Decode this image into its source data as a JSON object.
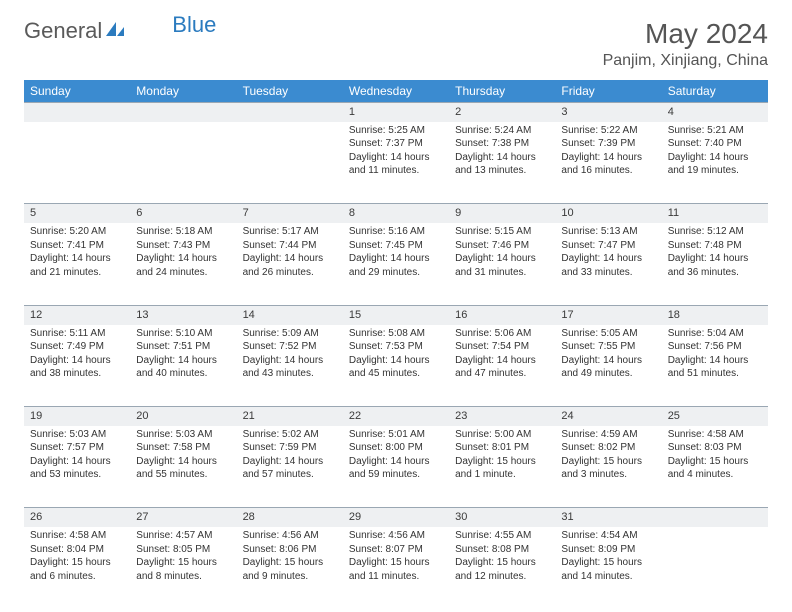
{
  "logo": {
    "text1": "General",
    "text2": "Blue",
    "color_accent": "#2b7bbf",
    "color_text": "#5a5a5a"
  },
  "header": {
    "title": "May 2024",
    "location": "Panjim, Xinjiang, China"
  },
  "colors": {
    "header_bg": "#3b8bd0",
    "header_text": "#ffffff",
    "daynum_bg": "#eef0f2",
    "daynum_border": "#9aa7b3",
    "body_text": "#333333"
  },
  "weekdays": [
    "Sunday",
    "Monday",
    "Tuesday",
    "Wednesday",
    "Thursday",
    "Friday",
    "Saturday"
  ],
  "weeks": [
    [
      null,
      null,
      null,
      {
        "n": "1",
        "sr": "Sunrise: 5:25 AM",
        "ss": "Sunset: 7:37 PM",
        "d1": "Daylight: 14 hours",
        "d2": "and 11 minutes."
      },
      {
        "n": "2",
        "sr": "Sunrise: 5:24 AM",
        "ss": "Sunset: 7:38 PM",
        "d1": "Daylight: 14 hours",
        "d2": "and 13 minutes."
      },
      {
        "n": "3",
        "sr": "Sunrise: 5:22 AM",
        "ss": "Sunset: 7:39 PM",
        "d1": "Daylight: 14 hours",
        "d2": "and 16 minutes."
      },
      {
        "n": "4",
        "sr": "Sunrise: 5:21 AM",
        "ss": "Sunset: 7:40 PM",
        "d1": "Daylight: 14 hours",
        "d2": "and 19 minutes."
      }
    ],
    [
      {
        "n": "5",
        "sr": "Sunrise: 5:20 AM",
        "ss": "Sunset: 7:41 PM",
        "d1": "Daylight: 14 hours",
        "d2": "and 21 minutes."
      },
      {
        "n": "6",
        "sr": "Sunrise: 5:18 AM",
        "ss": "Sunset: 7:43 PM",
        "d1": "Daylight: 14 hours",
        "d2": "and 24 minutes."
      },
      {
        "n": "7",
        "sr": "Sunrise: 5:17 AM",
        "ss": "Sunset: 7:44 PM",
        "d1": "Daylight: 14 hours",
        "d2": "and 26 minutes."
      },
      {
        "n": "8",
        "sr": "Sunrise: 5:16 AM",
        "ss": "Sunset: 7:45 PM",
        "d1": "Daylight: 14 hours",
        "d2": "and 29 minutes."
      },
      {
        "n": "9",
        "sr": "Sunrise: 5:15 AM",
        "ss": "Sunset: 7:46 PM",
        "d1": "Daylight: 14 hours",
        "d2": "and 31 minutes."
      },
      {
        "n": "10",
        "sr": "Sunrise: 5:13 AM",
        "ss": "Sunset: 7:47 PM",
        "d1": "Daylight: 14 hours",
        "d2": "and 33 minutes."
      },
      {
        "n": "11",
        "sr": "Sunrise: 5:12 AM",
        "ss": "Sunset: 7:48 PM",
        "d1": "Daylight: 14 hours",
        "d2": "and 36 minutes."
      }
    ],
    [
      {
        "n": "12",
        "sr": "Sunrise: 5:11 AM",
        "ss": "Sunset: 7:49 PM",
        "d1": "Daylight: 14 hours",
        "d2": "and 38 minutes."
      },
      {
        "n": "13",
        "sr": "Sunrise: 5:10 AM",
        "ss": "Sunset: 7:51 PM",
        "d1": "Daylight: 14 hours",
        "d2": "and 40 minutes."
      },
      {
        "n": "14",
        "sr": "Sunrise: 5:09 AM",
        "ss": "Sunset: 7:52 PM",
        "d1": "Daylight: 14 hours",
        "d2": "and 43 minutes."
      },
      {
        "n": "15",
        "sr": "Sunrise: 5:08 AM",
        "ss": "Sunset: 7:53 PM",
        "d1": "Daylight: 14 hours",
        "d2": "and 45 minutes."
      },
      {
        "n": "16",
        "sr": "Sunrise: 5:06 AM",
        "ss": "Sunset: 7:54 PM",
        "d1": "Daylight: 14 hours",
        "d2": "and 47 minutes."
      },
      {
        "n": "17",
        "sr": "Sunrise: 5:05 AM",
        "ss": "Sunset: 7:55 PM",
        "d1": "Daylight: 14 hours",
        "d2": "and 49 minutes."
      },
      {
        "n": "18",
        "sr": "Sunrise: 5:04 AM",
        "ss": "Sunset: 7:56 PM",
        "d1": "Daylight: 14 hours",
        "d2": "and 51 minutes."
      }
    ],
    [
      {
        "n": "19",
        "sr": "Sunrise: 5:03 AM",
        "ss": "Sunset: 7:57 PM",
        "d1": "Daylight: 14 hours",
        "d2": "and 53 minutes."
      },
      {
        "n": "20",
        "sr": "Sunrise: 5:03 AM",
        "ss": "Sunset: 7:58 PM",
        "d1": "Daylight: 14 hours",
        "d2": "and 55 minutes."
      },
      {
        "n": "21",
        "sr": "Sunrise: 5:02 AM",
        "ss": "Sunset: 7:59 PM",
        "d1": "Daylight: 14 hours",
        "d2": "and 57 minutes."
      },
      {
        "n": "22",
        "sr": "Sunrise: 5:01 AM",
        "ss": "Sunset: 8:00 PM",
        "d1": "Daylight: 14 hours",
        "d2": "and 59 minutes."
      },
      {
        "n": "23",
        "sr": "Sunrise: 5:00 AM",
        "ss": "Sunset: 8:01 PM",
        "d1": "Daylight: 15 hours",
        "d2": "and 1 minute."
      },
      {
        "n": "24",
        "sr": "Sunrise: 4:59 AM",
        "ss": "Sunset: 8:02 PM",
        "d1": "Daylight: 15 hours",
        "d2": "and 3 minutes."
      },
      {
        "n": "25",
        "sr": "Sunrise: 4:58 AM",
        "ss": "Sunset: 8:03 PM",
        "d1": "Daylight: 15 hours",
        "d2": "and 4 minutes."
      }
    ],
    [
      {
        "n": "26",
        "sr": "Sunrise: 4:58 AM",
        "ss": "Sunset: 8:04 PM",
        "d1": "Daylight: 15 hours",
        "d2": "and 6 minutes."
      },
      {
        "n": "27",
        "sr": "Sunrise: 4:57 AM",
        "ss": "Sunset: 8:05 PM",
        "d1": "Daylight: 15 hours",
        "d2": "and 8 minutes."
      },
      {
        "n": "28",
        "sr": "Sunrise: 4:56 AM",
        "ss": "Sunset: 8:06 PM",
        "d1": "Daylight: 15 hours",
        "d2": "and 9 minutes."
      },
      {
        "n": "29",
        "sr": "Sunrise: 4:56 AM",
        "ss": "Sunset: 8:07 PM",
        "d1": "Daylight: 15 hours",
        "d2": "and 11 minutes."
      },
      {
        "n": "30",
        "sr": "Sunrise: 4:55 AM",
        "ss": "Sunset: 8:08 PM",
        "d1": "Daylight: 15 hours",
        "d2": "and 12 minutes."
      },
      {
        "n": "31",
        "sr": "Sunrise: 4:54 AM",
        "ss": "Sunset: 8:09 PM",
        "d1": "Daylight: 15 hours",
        "d2": "and 14 minutes."
      },
      null
    ]
  ]
}
